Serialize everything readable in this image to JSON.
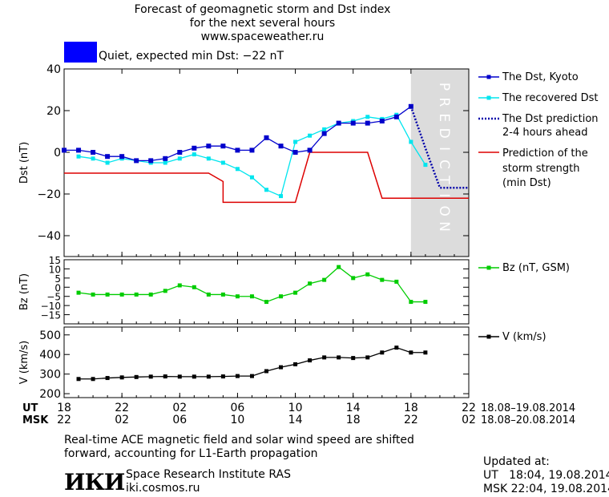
{
  "header": {
    "title_line1": "Forecast of geomagnetic storm and Dst index",
    "title_line2": "for the next several hours",
    "title_line3": "www.spaceweather.ru"
  },
  "status": {
    "text": "Quiet, expected min Dst: −22 nT",
    "color": "#0000ff"
  },
  "legend": {
    "dst_kyoto": "The Dst, Kyoto",
    "recovered": "The recovered Dst",
    "prediction_line1": "The Dst prediction",
    "prediction_line2": "2-4 hours ahead",
    "strength_line1": "Prediction of the",
    "strength_line2": "storm strength",
    "strength_line3": "(min Dst)",
    "bz": "Bz (nT, GSM)",
    "v": "V (km/s)"
  },
  "prediction_label": "PREDICTION",
  "colors": {
    "dst": "#0000cc",
    "recovered": "#00e5ee",
    "prediction": "#0000aa",
    "strength": "#dd0000",
    "bz": "#00cc00",
    "v": "#000000",
    "shade": "#dcdcdc"
  },
  "time_axis": {
    "ut_label": "UT",
    "msk_label": "MSK",
    "ut_ticks": [
      "18",
      "22",
      "02",
      "06",
      "10",
      "14",
      "18",
      "22"
    ],
    "msk_ticks": [
      "22",
      "02",
      "06",
      "10",
      "14",
      "18",
      "22",
      "02"
    ],
    "ut_range": "18.08–19.08.2014",
    "msk_range": "18.08–20.08.2014"
  },
  "footer": {
    "note_line1": "Real-time ACE magnetic field and solar wind speed are shifted",
    "note_line2": "forward, accounting for L1-Earth propagation",
    "institute": "Space Research Institute RAS",
    "site": "iki.cosmos.ru",
    "logo": "ИКИ",
    "updated_label": "Updated at:",
    "updated_ut": "UT   18:04, 19.08.2014",
    "updated_msk": "MSK 22:04, 19.08.2014"
  },
  "chart_data": [
    {
      "type": "line",
      "ylabel": "Dst (nT)",
      "xlim": [
        0,
        28
      ],
      "ylim": [
        -50,
        40
      ],
      "yticks": [
        -40,
        -20,
        0,
        20,
        40
      ],
      "prediction_region": [
        24,
        28
      ],
      "series": [
        {
          "name": "The Dst, Kyoto",
          "x": [
            0,
            1,
            2,
            3,
            4,
            5,
            6,
            7,
            8,
            9,
            10,
            11,
            12,
            13,
            14,
            15,
            16,
            17,
            18,
            19,
            20,
            21,
            22,
            23,
            24
          ],
          "y": [
            1,
            1,
            0,
            -2,
            -2,
            -4,
            -4,
            -3,
            0,
            2,
            3,
            3,
            1,
            1,
            7,
            3,
            0,
            1,
            9,
            14,
            14,
            14,
            15,
            17,
            22
          ]
        },
        {
          "name": "The recovered Dst",
          "x": [
            1,
            2,
            3,
            4,
            5,
            6,
            7,
            8,
            9,
            10,
            11,
            12,
            13,
            14,
            15,
            16,
            17,
            18,
            19,
            20,
            21,
            22,
            23,
            24,
            25
          ],
          "y": [
            -2,
            -3,
            -5,
            -3,
            -4,
            -5,
            -5,
            -3,
            -1,
            -3,
            -5,
            -8,
            -12,
            -18,
            -21,
            5,
            8,
            11,
            14,
            15,
            17,
            16,
            18,
            5,
            -6
          ]
        },
        {
          "name": "The Dst prediction 2-4 hours ahead",
          "x": [
            24,
            25,
            26,
            27,
            28
          ],
          "y": [
            22,
            2,
            -17,
            -17,
            -17
          ]
        },
        {
          "name": "Prediction of the storm strength (min Dst)",
          "x": [
            0,
            10,
            11,
            11,
            16,
            17,
            19,
            21,
            22,
            23,
            28
          ],
          "y": [
            -10,
            -10,
            -14,
            -24,
            -24,
            0,
            0,
            0,
            -22,
            -22,
            -22
          ]
        }
      ]
    },
    {
      "type": "line",
      "ylabel": "Bz (nT)",
      "xlim": [
        0,
        28
      ],
      "ylim": [
        -20,
        15
      ],
      "yticks": [
        -15,
        -10,
        -5,
        0,
        5,
        10,
        15
      ],
      "series": [
        {
          "name": "Bz (nT, GSM)",
          "x": [
            1,
            2,
            3,
            4,
            5,
            6,
            7,
            8,
            9,
            10,
            11,
            12,
            13,
            14,
            15,
            16,
            17,
            18,
            19,
            20,
            21,
            22,
            23,
            24,
            25
          ],
          "y": [
            -3,
            -4,
            -4,
            -4,
            -4,
            -4,
            -2,
            1,
            0,
            -4,
            -4,
            -5,
            -5,
            -8,
            -5,
            -3,
            2,
            4,
            11,
            5,
            7,
            4,
            3,
            -8,
            -8
          ]
        }
      ]
    },
    {
      "type": "line",
      "ylabel": "V (km/s)",
      "xlim": [
        0,
        28
      ],
      "ylim": [
        180,
        540
      ],
      "yticks": [
        200,
        300,
        400,
        500
      ],
      "series": [
        {
          "name": "V (km/s)",
          "x": [
            1,
            2,
            3,
            4,
            5,
            6,
            7,
            8,
            9,
            10,
            11,
            12,
            13,
            14,
            15,
            16,
            17,
            18,
            19,
            20,
            21,
            22,
            23,
            24,
            25
          ],
          "y": [
            275,
            275,
            280,
            283,
            285,
            287,
            288,
            287,
            287,
            287,
            288,
            290,
            290,
            315,
            335,
            350,
            370,
            385,
            385,
            382,
            385,
            410,
            435,
            410,
            410
          ]
        }
      ]
    }
  ]
}
